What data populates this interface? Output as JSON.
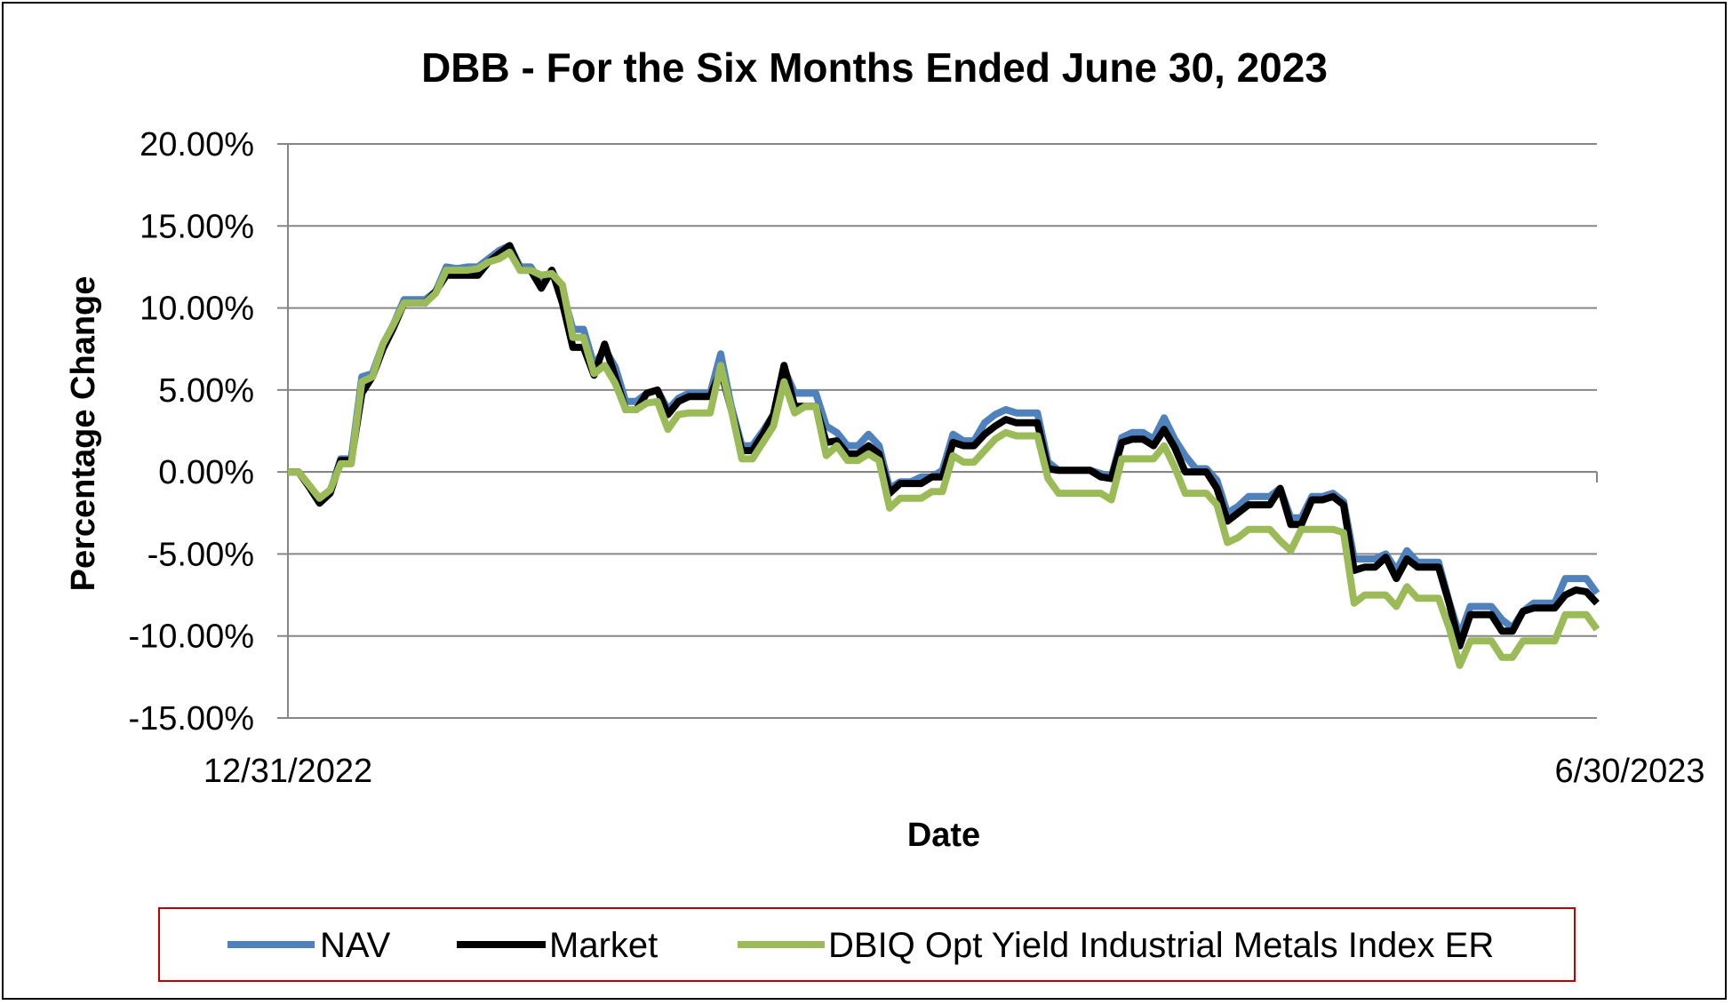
{
  "chart_data": {
    "type": "line",
    "title": "DBB - For the Six Months Ended June 30, 2023",
    "xlabel": "Date",
    "ylabel": "Percentage Change",
    "x_tick_labels": [
      "12/31/2022",
      "6/30/2023"
    ],
    "ylim": [
      -15,
      20
    ],
    "y_ticks": [
      20,
      15,
      10,
      5,
      0,
      -5,
      -10,
      -15
    ],
    "y_tick_labels": [
      "20.00%",
      "15.00%",
      "10.00%",
      "5.00%",
      "0.00%",
      "-5.00%",
      "-10.00%",
      "-15.00%"
    ],
    "grid": true,
    "legend_position": "bottom",
    "series": [
      {
        "name": "NAV",
        "color": "#4f81bd",
        "x": [
          0,
          1,
          2,
          3,
          4,
          5,
          6,
          7,
          8,
          9,
          10,
          11,
          12,
          13,
          14,
          15,
          16,
          17,
          18,
          19,
          20,
          21,
          22,
          23,
          24,
          25,
          26,
          27,
          28,
          29,
          30,
          31,
          32,
          33,
          34,
          35,
          36,
          37,
          38,
          39,
          40,
          41,
          42,
          43,
          44,
          45,
          46,
          47,
          48,
          49,
          50,
          51,
          52,
          53,
          54,
          55,
          56,
          57,
          58,
          59,
          60,
          61,
          62,
          63,
          64,
          65,
          66,
          67,
          68,
          69,
          70,
          71,
          72,
          73,
          74,
          75,
          76,
          77,
          78,
          79,
          80,
          81,
          82,
          83,
          84,
          85,
          86,
          87,
          88,
          89,
          90,
          91,
          92,
          93,
          94,
          95,
          96,
          97,
          98,
          99,
          100,
          101,
          102,
          103,
          104,
          105,
          106,
          107,
          108,
          109,
          110,
          111,
          112,
          113,
          114,
          115,
          116,
          117,
          118,
          119,
          120,
          121,
          122,
          123,
          124
        ],
        "values": [
          0.0,
          0.0,
          -0.8,
          -1.8,
          -1.2,
          0.8,
          0.8,
          5.8,
          6.0,
          7.8,
          9.0,
          10.5,
          10.5,
          10.5,
          11.0,
          12.5,
          12.4,
          12.5,
          12.5,
          13.0,
          13.5,
          13.8,
          12.5,
          12.5,
          11.5,
          12.3,
          11.0,
          8.7,
          8.7,
          6.5,
          7.5,
          6.4,
          4.3,
          4.3,
          4.8,
          5.0,
          3.8,
          4.5,
          4.8,
          4.8,
          4.8,
          7.2,
          4.0,
          1.6,
          1.6,
          2.5,
          3.5,
          6.3,
          4.8,
          4.8,
          4.8,
          2.8,
          2.4,
          1.6,
          1.6,
          2.3,
          1.6,
          -1.0,
          -0.6,
          -0.6,
          -0.3,
          -0.3,
          0.1,
          2.3,
          1.9,
          1.9,
          3.0,
          3.5,
          3.8,
          3.6,
          3.6,
          3.6,
          0.6,
          0.1,
          0.1,
          0.1,
          0.1,
          -0.1,
          -0.3,
          2.1,
          2.4,
          2.4,
          2.0,
          3.3,
          2.0,
          1.0,
          0.2,
          0.2,
          -0.5,
          -2.5,
          -2.1,
          -1.5,
          -1.5,
          -1.5,
          -1.0,
          -2.8,
          -2.8,
          -1.5,
          -1.5,
          -1.3,
          -1.8,
          -5.3,
          -5.3,
          -5.3,
          -5.0,
          -6.0,
          -4.8,
          -5.5,
          -5.5,
          -5.5,
          -7.9,
          -10.0,
          -8.2,
          -8.2,
          -8.2,
          -9.0,
          -9.5,
          -8.5,
          -8.0,
          -8.0,
          -8.0,
          -6.5,
          -6.5,
          -6.5,
          -7.4
        ]
      },
      {
        "name": "Market",
        "color": "#000000",
        "x": [
          0,
          1,
          2,
          3,
          4,
          5,
          6,
          7,
          8,
          9,
          10,
          11,
          12,
          13,
          14,
          15,
          16,
          17,
          18,
          19,
          20,
          21,
          22,
          23,
          24,
          25,
          26,
          27,
          28,
          29,
          30,
          31,
          32,
          33,
          34,
          35,
          36,
          37,
          38,
          39,
          40,
          41,
          42,
          43,
          44,
          45,
          46,
          47,
          48,
          49,
          50,
          51,
          52,
          53,
          54,
          55,
          56,
          57,
          58,
          59,
          60,
          61,
          62,
          63,
          64,
          65,
          66,
          67,
          68,
          69,
          70,
          71,
          72,
          73,
          74,
          75,
          76,
          77,
          78,
          79,
          80,
          81,
          82,
          83,
          84,
          85,
          86,
          87,
          88,
          89,
          90,
          91,
          92,
          93,
          94,
          95,
          96,
          97,
          98,
          99,
          100,
          101,
          102,
          103,
          104,
          105,
          106,
          107,
          108,
          109,
          110,
          111,
          112,
          113,
          114,
          115,
          116,
          117,
          118,
          119,
          120,
          121,
          122,
          123,
          124
        ],
        "values": [
          0.0,
          0.0,
          -0.9,
          -1.9,
          -1.3,
          0.7,
          0.7,
          4.8,
          5.8,
          7.5,
          8.8,
          10.3,
          10.3,
          10.3,
          11.0,
          12.0,
          12.0,
          12.0,
          12.0,
          12.8,
          13.3,
          13.8,
          12.3,
          12.3,
          11.2,
          12.3,
          10.3,
          7.6,
          7.6,
          5.9,
          7.8,
          5.8,
          3.8,
          3.8,
          4.8,
          5.0,
          3.5,
          4.3,
          4.6,
          4.6,
          4.6,
          6.2,
          3.8,
          1.3,
          1.3,
          2.3,
          3.5,
          6.5,
          4.0,
          4.0,
          4.0,
          1.8,
          1.9,
          1.1,
          1.1,
          1.6,
          1.1,
          -1.3,
          -0.7,
          -0.7,
          -0.7,
          -0.3,
          -0.3,
          1.8,
          1.6,
          1.6,
          2.3,
          2.8,
          3.2,
          3.0,
          3.0,
          3.0,
          0.2,
          0.1,
          0.1,
          0.1,
          0.1,
          -0.3,
          -0.4,
          1.8,
          2.0,
          2.0,
          1.6,
          2.6,
          1.5,
          0.0,
          0.0,
          0.0,
          -1.0,
          -3.0,
          -2.5,
          -2.0,
          -2.0,
          -2.0,
          -1.0,
          -3.2,
          -3.2,
          -1.7,
          -1.7,
          -1.5,
          -2.0,
          -6.0,
          -5.8,
          -5.8,
          -5.2,
          -6.5,
          -5.3,
          -5.8,
          -5.8,
          -5.8,
          -8.0,
          -10.6,
          -8.7,
          -8.7,
          -8.7,
          -9.7,
          -9.7,
          -8.5,
          -8.3,
          -8.3,
          -8.3,
          -7.5,
          -7.2,
          -7.3,
          -8.0
        ]
      },
      {
        "name": "DBIQ Opt Yield Industrial Metals Index ER",
        "color": "#9bbb59",
        "x": [
          0,
          1,
          2,
          3,
          4,
          5,
          6,
          7,
          8,
          9,
          10,
          11,
          12,
          13,
          14,
          15,
          16,
          17,
          18,
          19,
          20,
          21,
          22,
          23,
          24,
          25,
          26,
          27,
          28,
          29,
          30,
          31,
          32,
          33,
          34,
          35,
          36,
          37,
          38,
          39,
          40,
          41,
          42,
          43,
          44,
          45,
          46,
          47,
          48,
          49,
          50,
          51,
          52,
          53,
          54,
          55,
          56,
          57,
          58,
          59,
          60,
          61,
          62,
          63,
          64,
          65,
          66,
          67,
          68,
          69,
          70,
          71,
          72,
          73,
          74,
          75,
          76,
          77,
          78,
          79,
          80,
          81,
          82,
          83,
          84,
          85,
          86,
          87,
          88,
          89,
          90,
          91,
          92,
          93,
          94,
          95,
          96,
          97,
          98,
          99,
          100,
          101,
          102,
          103,
          104,
          105,
          106,
          107,
          108,
          109,
          110,
          111,
          112,
          113,
          114,
          115,
          116,
          117,
          118,
          119,
          120,
          121,
          122,
          123,
          124
        ],
        "values": [
          0.0,
          0.0,
          -0.8,
          -1.6,
          -1.1,
          0.5,
          0.5,
          5.5,
          5.8,
          7.8,
          9.0,
          10.3,
          10.3,
          10.3,
          10.9,
          12.3,
          12.3,
          12.3,
          12.4,
          12.8,
          13.0,
          13.4,
          12.3,
          12.3,
          12.0,
          12.1,
          11.4,
          8.2,
          8.2,
          6.0,
          6.5,
          5.4,
          3.8,
          3.8,
          4.2,
          4.3,
          2.6,
          3.5,
          3.6,
          3.6,
          3.6,
          6.5,
          3.8,
          0.8,
          0.8,
          1.8,
          2.8,
          5.5,
          3.6,
          4.0,
          4.0,
          1.0,
          1.6,
          0.7,
          0.7,
          1.1,
          0.7,
          -2.2,
          -1.6,
          -1.6,
          -1.6,
          -1.2,
          -1.2,
          1.0,
          0.6,
          0.6,
          1.3,
          2.0,
          2.4,
          2.2,
          2.2,
          2.2,
          -0.4,
          -1.3,
          -1.3,
          -1.3,
          -1.3,
          -1.3,
          -1.7,
          0.8,
          0.8,
          0.8,
          0.8,
          1.6,
          0.3,
          -1.3,
          -1.3,
          -1.3,
          -2.0,
          -4.3,
          -4.0,
          -3.5,
          -3.5,
          -3.5,
          -4.2,
          -4.8,
          -3.5,
          -3.5,
          -3.5,
          -3.5,
          -3.7,
          -8.0,
          -7.5,
          -7.5,
          -7.5,
          -8.2,
          -7.0,
          -7.7,
          -7.7,
          -7.7,
          -9.5,
          -11.8,
          -10.3,
          -10.3,
          -10.3,
          -11.3,
          -11.3,
          -10.3,
          -10.3,
          -10.3,
          -10.3,
          -8.7,
          -8.7,
          -8.7,
          -9.6
        ]
      }
    ]
  }
}
